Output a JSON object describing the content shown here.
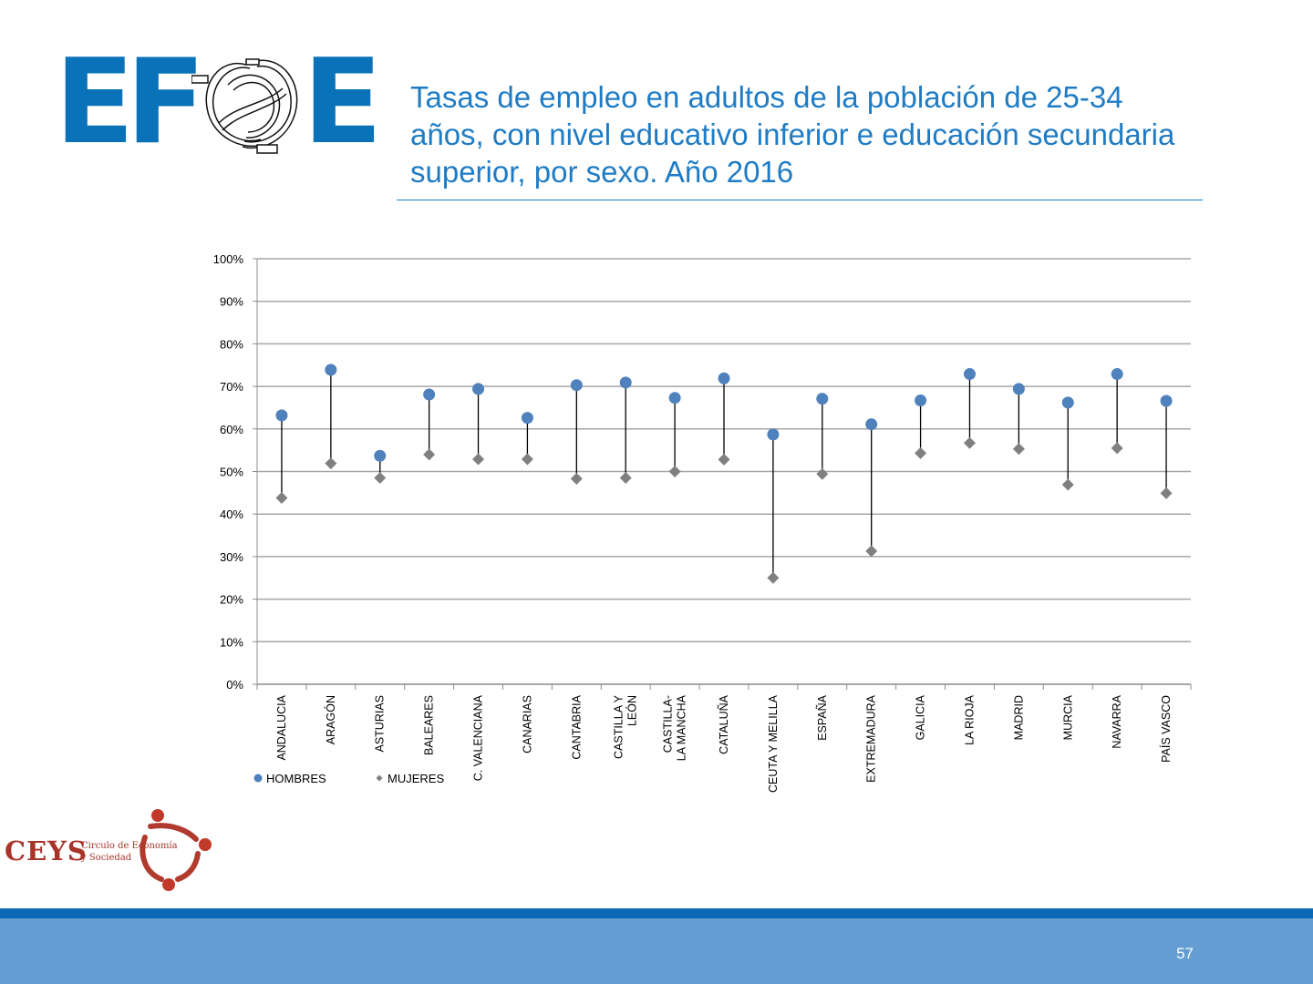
{
  "header": {
    "logo_letters": [
      "E",
      "F",
      "E"
    ],
    "title": "Tasas de empleo en adultos de la población de 25-34 años, con nivel educativo inferior e educación secundaria superior, por sexo. Año 2016"
  },
  "chart_data": {
    "type": "scatter",
    "subtype": "dot-range",
    "title": "",
    "xlabel": "",
    "ylabel": "",
    "ylim": [
      0,
      1
    ],
    "y_ticks": [
      "0%",
      "10%",
      "20%",
      "30%",
      "40%",
      "50%",
      "60%",
      "70%",
      "80%",
      "90%",
      "100%"
    ],
    "grid": true,
    "legend_position": "bottom-left",
    "categories": [
      [
        "ANDALUCIA"
      ],
      [
        "ARAGÓN"
      ],
      [
        "ASTURIAS"
      ],
      [
        "BALEARES"
      ],
      [
        "C. VALENCIANA"
      ],
      [
        "CANARIAS"
      ],
      [
        "CANTABRIA"
      ],
      [
        "CASTILLA Y",
        "LEÓN"
      ],
      [
        "CASTILLA-",
        "LA MANCHA"
      ],
      [
        "CATALUÑA"
      ],
      [
        "CEUTA Y MELILLA"
      ],
      [
        "ESPAÑA"
      ],
      [
        "EXTREMADURA"
      ],
      [
        "GALICIA"
      ],
      [
        "LA RIOJA"
      ],
      [
        "MADRID"
      ],
      [
        "MURCIA"
      ],
      [
        "NAVARRA"
      ],
      [
        "PAÍS VASCO"
      ]
    ],
    "series": [
      {
        "name": "HOMBRES",
        "marker": "circle",
        "color": "#4f81bd",
        "values": [
          0.632,
          0.739,
          0.537,
          0.681,
          0.694,
          0.626,
          0.703,
          0.709,
          0.673,
          0.719,
          0.587,
          0.671,
          0.611,
          0.667,
          0.729,
          0.694,
          0.662,
          0.729,
          0.666
        ]
      },
      {
        "name": "MUJERES",
        "marker": "diamond",
        "color": "#808080",
        "values": [
          0.438,
          0.519,
          0.485,
          0.54,
          0.529,
          0.529,
          0.483,
          0.485,
          0.5,
          0.528,
          0.25,
          0.494,
          0.313,
          0.543,
          0.567,
          0.553,
          0.469,
          0.555,
          0.449
        ]
      }
    ]
  },
  "ceys": {
    "mark": "CEYS",
    "line1": "Circulo de Economía",
    "line2": "y Sociedad"
  },
  "footer": {
    "page_number": "57"
  }
}
